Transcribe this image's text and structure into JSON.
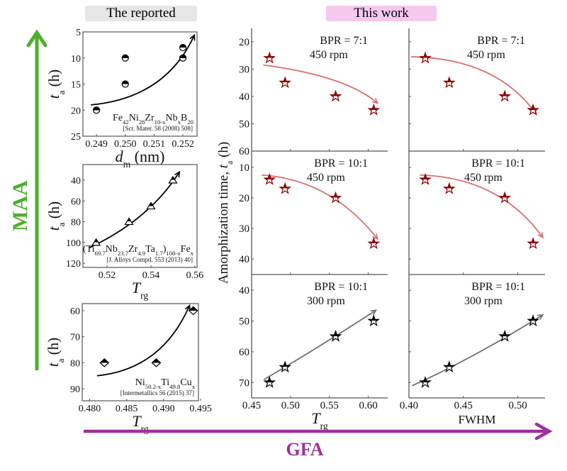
{
  "headers": {
    "reported": "The reported",
    "this_work": "This work",
    "reported_bg": "#e6e6e6",
    "this_work_bg": "#f6c8f0"
  },
  "side_arrows": {
    "maa": "MAA",
    "maa_color": "#4caf2a",
    "gfa": "GFA",
    "gfa_color": "#a0309a"
  },
  "shared_ylabel": [
    {
      "t": "Amorphization time, "
    },
    {
      "t": "t",
      "i": true
    },
    {
      "t": "a",
      "sub": true
    },
    {
      "t": " (h)"
    }
  ],
  "chart_data": [
    {
      "type": "scatter",
      "group": "reported",
      "marker": "circle",
      "color": "#000000",
      "xlim": [
        0.24853,
        0.25249
      ],
      "ylim": [
        5,
        25
      ],
      "y_reversed": true,
      "xticks": [
        0.249,
        0.25,
        0.251,
        0.252
      ],
      "xtick_labels": [
        "0.249",
        "0.250",
        "0.251",
        "0.252"
      ],
      "yticks": [
        5,
        10,
        15,
        20,
        25
      ],
      "ytick_labels": [
        "5",
        "10",
        "15",
        "20",
        "25"
      ],
      "xlabel": [
        {
          "t": "d",
          "i": true
        },
        {
          "t": "m",
          "sub": true
        },
        {
          "t": " (nm)"
        }
      ],
      "ylabel": [
        {
          "t": "t",
          "i": true
        },
        {
          "t": "a",
          "sub": true
        },
        {
          "t": " (h)"
        }
      ],
      "formula": [
        {
          "t": "Fe"
        },
        {
          "t": "42",
          "sub": true
        },
        {
          "t": "Ni"
        },
        {
          "t": "28",
          "sub": true
        },
        {
          "t": "Zr"
        },
        {
          "t": "10-x",
          "sub": true
        },
        {
          "t": "Nb"
        },
        {
          "t": "x",
          "sub": true
        },
        {
          "t": "B"
        },
        {
          "t": "20",
          "sub": true
        }
      ],
      "reference": "[Scr. Mater. 58 (2008) 508]",
      "points": [
        [
          0.249,
          20
        ],
        [
          0.25,
          10
        ],
        [
          0.25,
          15
        ],
        [
          0.252,
          8
        ],
        [
          0.252,
          10
        ]
      ],
      "trend": [
        [
          0.2488,
          19
        ],
        [
          0.251,
          15
        ],
        [
          0.2524,
          5.6
        ]
      ],
      "trend_color": "#000000"
    },
    {
      "type": "scatter",
      "group": "reported",
      "marker": "triangle",
      "color": "#000000",
      "xlim": [
        0.509,
        0.561
      ],
      "ylim": [
        25,
        124
      ],
      "y_reversed": true,
      "xticks": [
        0.52,
        0.54,
        0.56
      ],
      "xtick_labels": [
        "0.52",
        "0.54",
        "0.56"
      ],
      "yticks": [
        40,
        60,
        80,
        100,
        120
      ],
      "ytick_labels": [
        "40",
        "60",
        "80",
        "100",
        "120"
      ],
      "xlabel": [
        {
          "t": "T",
          "i": true
        },
        {
          "t": "rg",
          "sub": true
        }
      ],
      "ylabel": [
        {
          "t": "t",
          "i": true
        },
        {
          "t": "a",
          "sub": true
        },
        {
          "t": " (h)"
        }
      ],
      "formula": [
        {
          "t": "(Ti"
        },
        {
          "t": "69.7",
          "sub": true
        },
        {
          "t": "Nb"
        },
        {
          "t": "23.7",
          "sub": true
        },
        {
          "t": "Zr"
        },
        {
          "t": "4.9",
          "sub": true
        },
        {
          "t": "Ta"
        },
        {
          "t": "1.7",
          "sub": true
        },
        {
          "t": ")"
        },
        {
          "t": "100-x",
          "sub": true
        },
        {
          "t": "Fe"
        },
        {
          "t": "x",
          "sub": true
        }
      ],
      "reference": "[J. Alloys Compd. 553 (2013) 40]",
      "points": [
        [
          0.515,
          100
        ],
        [
          0.53,
          80
        ],
        [
          0.54,
          65
        ],
        [
          0.55,
          40
        ]
      ],
      "trend": [
        [
          0.512,
          105
        ],
        [
          0.536,
          73
        ],
        [
          0.553,
          32
        ]
      ],
      "trend_color": "#000000"
    },
    {
      "type": "scatter",
      "group": "reported",
      "marker": "diamond",
      "color": "#000000",
      "xlim": [
        0.479,
        0.4947
      ],
      "ylim": [
        57.3,
        94.6
      ],
      "y_reversed": true,
      "xticks": [
        0.48,
        0.485,
        0.49,
        0.495
      ],
      "xtick_labels": [
        "0.480",
        "0.485",
        "0.490",
        "0.495"
      ],
      "yticks": [
        60,
        70,
        80,
        90
      ],
      "ytick_labels": [
        "60",
        "70",
        "80",
        "90"
      ],
      "xlabel": [
        {
          "t": "T",
          "i": true
        },
        {
          "t": "rg",
          "sub": true
        }
      ],
      "ylabel": [
        {
          "t": "t",
          "i": true
        },
        {
          "t": "a",
          "sub": true
        },
        {
          "t": " (h)"
        }
      ],
      "formula": [
        {
          "t": "Ni"
        },
        {
          "t": "50.2-x",
          "sub": true
        },
        {
          "t": "Ti"
        },
        {
          "t": "49.8",
          "sub": true
        },
        {
          "t": "Cu"
        },
        {
          "t": "x",
          "sub": true
        }
      ],
      "reference": "[Intermetallics 56 (2015) 37]",
      "points": [
        [
          0.482,
          80
        ],
        [
          0.489,
          80
        ],
        [
          0.494,
          60
        ]
      ],
      "trend": [
        [
          0.481,
          85
        ],
        [
          0.4885,
          77
        ],
        [
          0.4935,
          58
        ]
      ],
      "trend_color": "#000000"
    },
    {
      "type": "scatter",
      "group": "this_work",
      "col": 0,
      "row": 0,
      "marker": "star",
      "color": "#8b0000",
      "xlim": [
        0.45,
        0.625
      ],
      "ylim": [
        15.1,
        60
      ],
      "y_reversed": true,
      "xticks": [
        0.45,
        0.5,
        0.55,
        0.6
      ],
      "yticks": [
        20,
        30,
        40,
        50,
        60
      ],
      "ytick_labels": [
        "20",
        "30",
        "40",
        "50",
        "60"
      ],
      "condition": [
        "BPR = 7:1",
        "450 rpm"
      ],
      "points": [
        [
          0.473,
          26
        ],
        [
          0.493,
          35
        ],
        [
          0.558,
          40
        ],
        [
          0.607,
          45
        ]
      ],
      "trend": [
        [
          0.465,
          28.5
        ],
        [
          0.555,
          34
        ],
        [
          0.612,
          42.5
        ]
      ],
      "trend_color": "#d97070"
    },
    {
      "type": "scatter",
      "group": "this_work",
      "col": 1,
      "row": 0,
      "marker": "star",
      "color": "#8b0000",
      "xlim": [
        0.4,
        0.525
      ],
      "ylim": [
        15.1,
        60
      ],
      "y_reversed": true,
      "xticks": [
        0.4,
        0.45,
        0.5
      ],
      "yticks": [
        20,
        30,
        40,
        50,
        60
      ],
      "condition": [
        "BPR = 7:1",
        "450 rpm"
      ],
      "points": [
        [
          0.415,
          26
        ],
        [
          0.437,
          35
        ],
        [
          0.488,
          40
        ],
        [
          0.514,
          45
        ]
      ],
      "trend": [
        [
          0.402,
          25.5
        ],
        [
          0.47,
          31
        ],
        [
          0.517,
          46.5
        ]
      ],
      "trend_color": "#d97070"
    },
    {
      "type": "scatter",
      "group": "this_work",
      "col": 0,
      "row": 1,
      "marker": "star",
      "color": "#8b0000",
      "xlim": [
        0.45,
        0.625
      ],
      "ylim": [
        4.65,
        45.1
      ],
      "y_reversed": true,
      "xticks": [
        0.45,
        0.5,
        0.55,
        0.6
      ],
      "yticks": [
        10,
        20,
        30,
        40
      ],
      "ytick_labels": [
        "10",
        "20",
        "30",
        "40"
      ],
      "condition": [
        "BPR = 10:1",
        "450 rpm"
      ],
      "points": [
        [
          0.473,
          14
        ],
        [
          0.493,
          17
        ],
        [
          0.558,
          20
        ],
        [
          0.607,
          35
        ]
      ],
      "trend": [
        [
          0.463,
          12.5
        ],
        [
          0.545,
          18.5
        ],
        [
          0.612,
          33.5
        ]
      ],
      "trend_color": "#d97070"
    },
    {
      "type": "scatter",
      "group": "this_work",
      "col": 1,
      "row": 1,
      "marker": "star",
      "color": "#8b0000",
      "xlim": [
        0.4,
        0.525
      ],
      "ylim": [
        4.65,
        45.1
      ],
      "y_reversed": true,
      "xticks": [
        0.4,
        0.45,
        0.5
      ],
      "yticks": [
        10,
        20,
        30,
        40
      ],
      "condition": [
        "BPR = 10:1",
        "450 rpm"
      ],
      "points": [
        [
          0.415,
          14
        ],
        [
          0.437,
          17
        ],
        [
          0.488,
          20
        ],
        [
          0.514,
          35
        ]
      ],
      "trend": [
        [
          0.41,
          12.5
        ],
        [
          0.475,
          18
        ],
        [
          0.523,
          33
        ]
      ],
      "trend_color": "#d97070"
    },
    {
      "type": "scatter",
      "group": "this_work",
      "col": 0,
      "row": 2,
      "marker": "star",
      "color": "#000000",
      "xlim": [
        0.45,
        0.625
      ],
      "ylim": [
        34.9,
        75
      ],
      "y_reversed": true,
      "xticks": [
        0.45,
        0.5,
        0.55,
        0.6
      ],
      "xtick_labels": [
        "0.45",
        "0.50",
        "0.55",
        "0.60"
      ],
      "yticks": [
        40,
        50,
        60,
        70
      ],
      "ytick_labels": [
        "40",
        "50",
        "60",
        "70"
      ],
      "xlabel": [
        {
          "t": "T",
          "i": true
        },
        {
          "t": "rg",
          "sub": true
        }
      ],
      "condition": [
        "BPR = 10:1",
        "300 rpm"
      ],
      "points": [
        [
          0.473,
          70
        ],
        [
          0.493,
          65
        ],
        [
          0.558,
          55
        ],
        [
          0.607,
          50
        ]
      ],
      "trend": [
        [
          0.466,
          69
        ],
        [
          0.535,
          58.5
        ],
        [
          0.61,
          46.5
        ]
      ],
      "trend_color": "#707070"
    },
    {
      "type": "scatter",
      "group": "this_work",
      "col": 1,
      "row": 2,
      "marker": "star",
      "color": "#000000",
      "xlim": [
        0.4,
        0.525
      ],
      "ylim": [
        34.9,
        75
      ],
      "y_reversed": true,
      "xticks": [
        0.4,
        0.45,
        0.5
      ],
      "xtick_labels": [
        "0.40",
        "0.45",
        "0.50"
      ],
      "yticks": [
        40,
        50,
        60,
        70
      ],
      "xlabel": [
        {
          "t": "FWHM"
        }
      ],
      "condition": [
        "BPR = 10:1",
        "300 rpm"
      ],
      "points": [
        [
          0.415,
          70
        ],
        [
          0.437,
          65
        ],
        [
          0.488,
          55
        ],
        [
          0.514,
          50
        ]
      ],
      "trend": [
        [
          0.403,
          71
        ],
        [
          0.46,
          61
        ],
        [
          0.523,
          48
        ]
      ],
      "trend_color": "#707070"
    }
  ]
}
